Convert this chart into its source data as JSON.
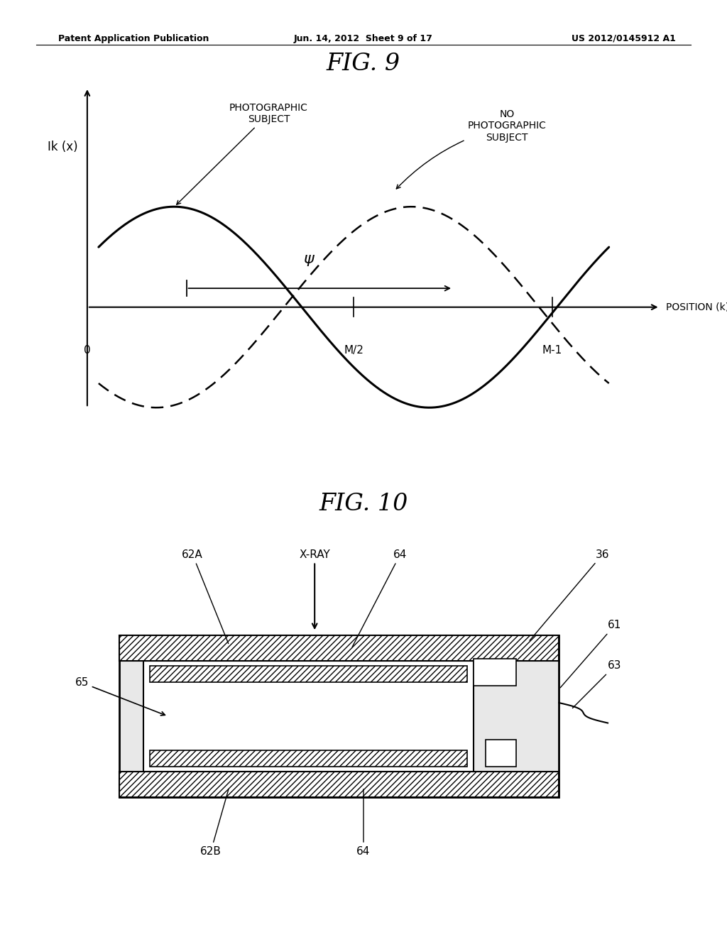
{
  "header_left": "Patent Application Publication",
  "header_center": "Jun. 14, 2012  Sheet 9 of 17",
  "header_right": "US 2012/0145912 A1",
  "fig9_title": "FIG. 9",
  "fig10_title": "FIG. 10",
  "ylabel_fig9": "Ik (x)",
  "xlabel_fig9": "POSITION (k)",
  "label_photographic": "PHOTOGRAPHIC\nSUBJECT",
  "label_no_photographic": "NO\nPHOTOGRAPHIC\nSUBJECT",
  "psi_label": "ψ",
  "background_color": "#ffffff"
}
